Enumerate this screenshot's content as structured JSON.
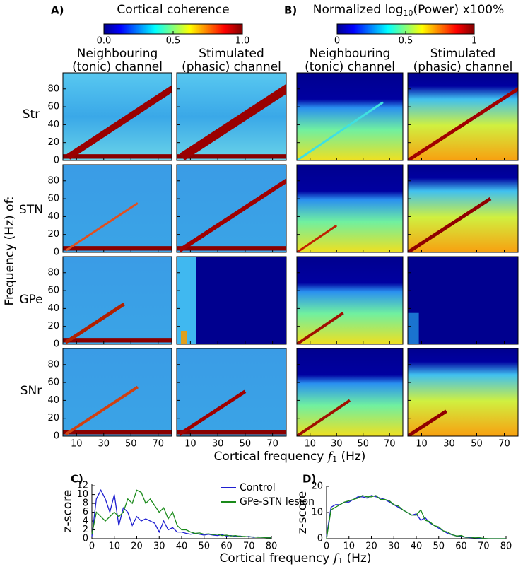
{
  "figure": {
    "panel_labels": [
      "A)",
      "B)",
      "C)",
      "D)"
    ],
    "colorbar_a": {
      "title": "Cortical coherence",
      "ticks": [
        {
          "value": 0,
          "label": "0.0"
        },
        {
          "value": 0.5,
          "label": "0.5"
        },
        {
          "value": 1,
          "label": "1.0"
        }
      ]
    },
    "colorbar_b": {
      "title_prefix": "Normalized log",
      "title_sub": "10",
      "title_suffix": "(Power) x100%",
      "ticks": [
        0,
        0.5,
        1
      ]
    },
    "column_headers": [
      [
        "Neighbouring",
        "(tonic) channel"
      ],
      [
        "Stimulated",
        "(phasic) channel"
      ],
      [
        "Neighbouring",
        "(tonic) channel"
      ],
      [
        "Stimulated",
        "(phasic) channel"
      ]
    ],
    "row_labels": [
      "Str",
      "STN",
      "GPe",
      "SNr"
    ],
    "ylabel": "Frequency (Hz)  of:",
    "xlabel": {
      "text": "Cortical frequency",
      "var": "f",
      "sub": "1",
      "unit": "(Hz)"
    },
    "heatmaps": {
      "xlim": [
        0,
        80
      ],
      "ylim": [
        0,
        98
      ],
      "xticks": [
        10,
        30,
        50,
        70
      ],
      "yticks": [
        0,
        20,
        40,
        60,
        80
      ]
    }
  },
  "chart_data": [
    {
      "type": "line",
      "ylabel": "z-score",
      "xlabel": {
        "text": "Cortical frequency",
        "var": "f",
        "sub": "1",
        "unit": "(Hz)"
      },
      "x": [
        0,
        2,
        4,
        6,
        8,
        10,
        12,
        14,
        16,
        18,
        20,
        22,
        24,
        26,
        28,
        30,
        32,
        34,
        36,
        38,
        40,
        42,
        44,
        46,
        48,
        50,
        52,
        54,
        56,
        58,
        60,
        62,
        64,
        66,
        68,
        70,
        72,
        74,
        76,
        78,
        80
      ],
      "series": [
        {
          "name": "Control",
          "color": "#1f1fd0",
          "values": [
            0.5,
            9,
            11,
            9,
            6,
            10,
            3,
            7,
            6,
            3,
            5,
            4,
            4.5,
            4,
            3.5,
            1.5,
            4,
            2,
            2.5,
            1.5,
            1.5,
            1.2,
            1,
            1.2,
            1,
            0.8,
            1,
            0.8,
            0.7,
            0.9,
            0.6,
            0.7,
            0.5,
            0.6,
            0.4,
            0.5,
            0.3,
            0.4,
            0.3,
            0.3,
            0.2
          ]
        },
        {
          "name": "GPe-STN lesion",
          "color": "#1a8a1a",
          "values": [
            1,
            6,
            5,
            4,
            5,
            6,
            5,
            6,
            9,
            8,
            11,
            10.5,
            8,
            9,
            7.5,
            6,
            7,
            4.5,
            6,
            3,
            2,
            2,
            1.5,
            1.2,
            1.3,
            1,
            1.1,
            0.9,
            1,
            0.7,
            0.8,
            0.6,
            0.7,
            0.5,
            0.5,
            0.4,
            0.4,
            0.3,
            0.3,
            0.2,
            0.2
          ]
        }
      ],
      "xlim": [
        0,
        80
      ],
      "ylim": [
        0,
        12.5
      ],
      "xticks": [
        0,
        10,
        20,
        30,
        40,
        50,
        60,
        70,
        80
      ],
      "yticks": [
        0,
        2,
        4,
        6,
        8,
        10,
        12
      ]
    },
    {
      "type": "line",
      "ylabel": "z-score",
      "x": [
        0,
        2,
        4,
        6,
        8,
        10,
        12,
        14,
        16,
        18,
        20,
        22,
        24,
        26,
        28,
        30,
        32,
        34,
        36,
        38,
        40,
        42,
        44,
        46,
        48,
        50,
        52,
        54,
        56,
        58,
        60,
        62,
        64,
        66,
        68,
        70,
        72,
        74,
        76,
        78,
        80
      ],
      "series": [
        {
          "color": "#1f1fd0",
          "values": [
            1,
            12,
            13,
            13,
            14,
            14,
            15,
            16,
            16,
            15.5,
            16.5,
            16,
            15.5,
            15,
            14,
            13,
            12,
            11,
            10,
            9,
            9.5,
            7,
            8,
            6,
            5,
            4,
            3,
            2,
            1.5,
            1,
            0.8,
            0.5,
            0.4,
            0.3,
            0.2,
            0.1,
            0,
            0,
            0,
            0,
            0
          ]
        },
        {
          "color": "#1a8a1a",
          "values": [
            0,
            11,
            12,
            13,
            14,
            14.5,
            15,
            15.5,
            16.5,
            16,
            16,
            16.5,
            15,
            15,
            14.5,
            13,
            12.5,
            11,
            10,
            9,
            9,
            11,
            7,
            6.5,
            5,
            4.5,
            3,
            2.5,
            1.5,
            1,
            1.2,
            0.5,
            0.6,
            0.3,
            0.4,
            0.1,
            0,
            0,
            0,
            0,
            0
          ]
        }
      ],
      "xlim": [
        0,
        80
      ],
      "ylim": [
        0,
        20
      ],
      "xticks": [
        0,
        10,
        20,
        30,
        40,
        50,
        60,
        70,
        80
      ],
      "yticks": [
        0,
        10,
        20
      ]
    }
  ]
}
